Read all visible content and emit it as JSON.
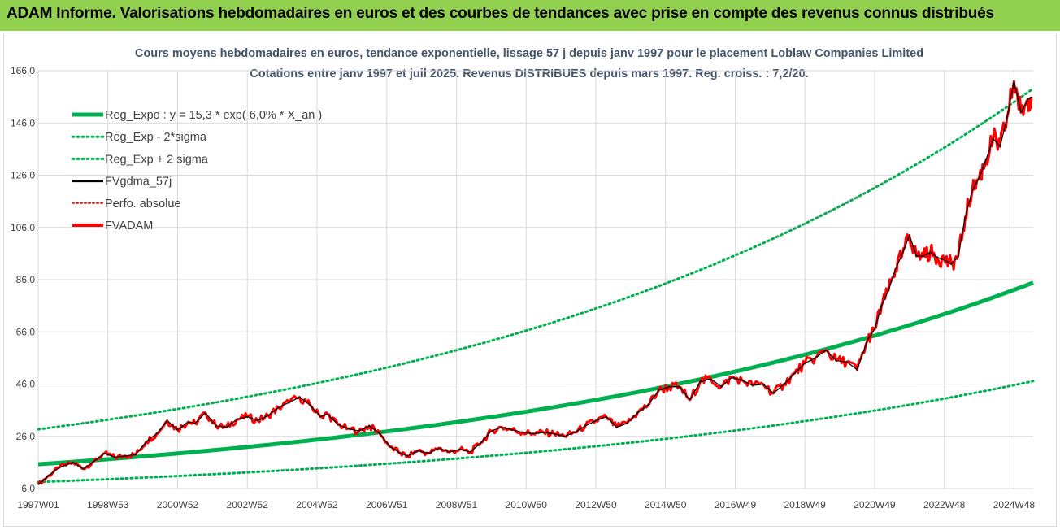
{
  "header": {
    "title": "ADAM Informe. Valorisations hebdomadaires en euros et des courbes de tendances avec prise en compte des revenus connus distribués"
  },
  "chart_data": {
    "type": "line",
    "title_lines": [
      "Cours moyens hebdomadaires en euros, tendance exponentielle, lissage 57 j depuis janv 1997 pour le placement Loblaw Companies Limited",
      "Cotations entre janv 1997 et juil 2025. Revenus DISTRIBUES depuis mars 1997. Reg. croiss. : 7,2/20."
    ],
    "ylim": [
      6,
      166
    ],
    "y_ticks": [
      "6,0",
      "26,0",
      "46,0",
      "66,0",
      "86,0",
      "106,0",
      "126,0",
      "146,0",
      "166,0"
    ],
    "x_ticks": [
      "1997W01",
      "1998W53",
      "2000W52",
      "2002W52",
      "2004W52",
      "2006W51",
      "2008W51",
      "2010W50",
      "2012W50",
      "2014W50",
      "2016W49",
      "2018W49",
      "2020W49",
      "2022W48",
      "2024W48"
    ],
    "x_tick_years": [
      1997.0,
      1999.0,
      2001.0,
      2003.0,
      2005.0,
      2007.0,
      2009.0,
      2011.0,
      2013.0,
      2015.0,
      2017.0,
      2019.0,
      2021.0,
      2023.0,
      2025.0
    ],
    "xlim": [
      1997.0,
      2025.55
    ],
    "grid": true,
    "legend_position": "top-left",
    "colors": {
      "trend": "#00b050",
      "band": "#00b050",
      "smoothed": "#000000",
      "absolute": "#ff0000",
      "fvadam": "#ff0000",
      "grid": "#d9d9d9",
      "title_bar": "#92d050"
    },
    "series": [
      {
        "name": "Reg_Expo : y = 15,3 * exp( 6,0% *  X_an )",
        "style": "solid-thick",
        "color": "#00b050",
        "x": [
          1997.0,
          2025.55
        ],
        "formula": {
          "a": 15.3,
          "rate": 0.06
        }
      },
      {
        "name": "Reg_Exp - 2*sigma",
        "style": "dotted",
        "color": "#00b050",
        "formula": {
          "a": 8.5,
          "rate": 0.06
        }
      },
      {
        "name": "Reg_Exp + 2 sigma",
        "style": "dotted",
        "color": "#00b050",
        "formula": {
          "a": 28.7,
          "rate": 0.06
        }
      },
      {
        "name": "FVgdma_57j",
        "style": "solid",
        "color": "#000000"
      },
      {
        "name": "Perfo. absolue",
        "style": "dotted",
        "color": "#ff0000"
      },
      {
        "name": "FVADAM",
        "style": "solid-thick",
        "color": "#ff0000",
        "x": [
          1997.0,
          1997.3,
          1997.6,
          1998.0,
          1998.3,
          1998.6,
          1998.9,
          1999.2,
          1999.5,
          1999.8,
          2000.1,
          2000.4,
          2000.7,
          2001.0,
          2001.3,
          2001.5,
          2001.8,
          2002.1,
          2002.4,
          2002.7,
          2003.0,
          2003.3,
          2003.6,
          2003.9,
          2004.2,
          2004.5,
          2004.8,
          2005.1,
          2005.3,
          2005.6,
          2005.9,
          2006.2,
          2006.5,
          2006.8,
          2007.1,
          2007.4,
          2007.6,
          2007.9,
          2008.2,
          2008.5,
          2008.8,
          2009.1,
          2009.4,
          2009.7,
          2010.0,
          2010.3,
          2010.6,
          2010.9,
          2011.2,
          2011.5,
          2011.8,
          2012.1,
          2012.4,
          2012.7,
          2013.0,
          2013.3,
          2013.6,
          2013.9,
          2014.2,
          2014.5,
          2014.8,
          2015.1,
          2015.4,
          2015.7,
          2016.0,
          2016.3,
          2016.6,
          2016.9,
          2017.2,
          2017.5,
          2017.8,
          2018.1,
          2018.4,
          2018.7,
          2019.0,
          2019.3,
          2019.6,
          2019.9,
          2020.2,
          2020.5,
          2020.8,
          2021.0,
          2021.2,
          2021.4,
          2021.6,
          2021.8,
          2022.0,
          2022.2,
          2022.4,
          2022.6,
          2022.8,
          2023.0,
          2023.2,
          2023.4,
          2023.6,
          2023.8,
          2024.0,
          2024.2,
          2024.4,
          2024.6,
          2024.8,
          2025.0,
          2025.2,
          2025.4,
          2025.5
        ],
        "values": [
          7.5,
          11.0,
          14.0,
          16.0,
          13.5,
          16.5,
          19.5,
          18.0,
          18.5,
          19.0,
          24.0,
          27.0,
          32.0,
          28.5,
          31.5,
          31.0,
          35.0,
          30.0,
          29.5,
          32.5,
          33.5,
          32.0,
          34.0,
          37.0,
          39.0,
          41.0,
          38.0,
          33.5,
          34.5,
          30.5,
          29.0,
          28.0,
          30.0,
          27.0,
          22.0,
          19.5,
          18.5,
          20.5,
          19.5,
          21.5,
          20.0,
          21.0,
          20.0,
          23.5,
          28.0,
          29.5,
          28.5,
          27.5,
          27.0,
          27.5,
          27.0,
          26.0,
          27.5,
          30.0,
          32.0,
          33.5,
          29.5,
          31.0,
          35.0,
          38.0,
          43.5,
          45.0,
          45.0,
          40.0,
          47.0,
          48.0,
          45.0,
          48.5,
          47.5,
          45.5,
          46.0,
          42.5,
          46.0,
          50.0,
          54.0,
          56.0,
          59.0,
          55.0,
          54.5,
          51.5,
          63.0,
          67.0,
          76.0,
          82.0,
          90.0,
          96.0,
          103.0,
          95.0,
          95.0,
          96.5,
          94.5,
          93.5,
          92.0,
          95.0,
          110.0,
          120.0,
          125.0,
          132.0,
          140.0,
          137.0,
          148.0,
          162.0,
          150.0,
          155.0,
          156.0
        ]
      }
    ]
  }
}
